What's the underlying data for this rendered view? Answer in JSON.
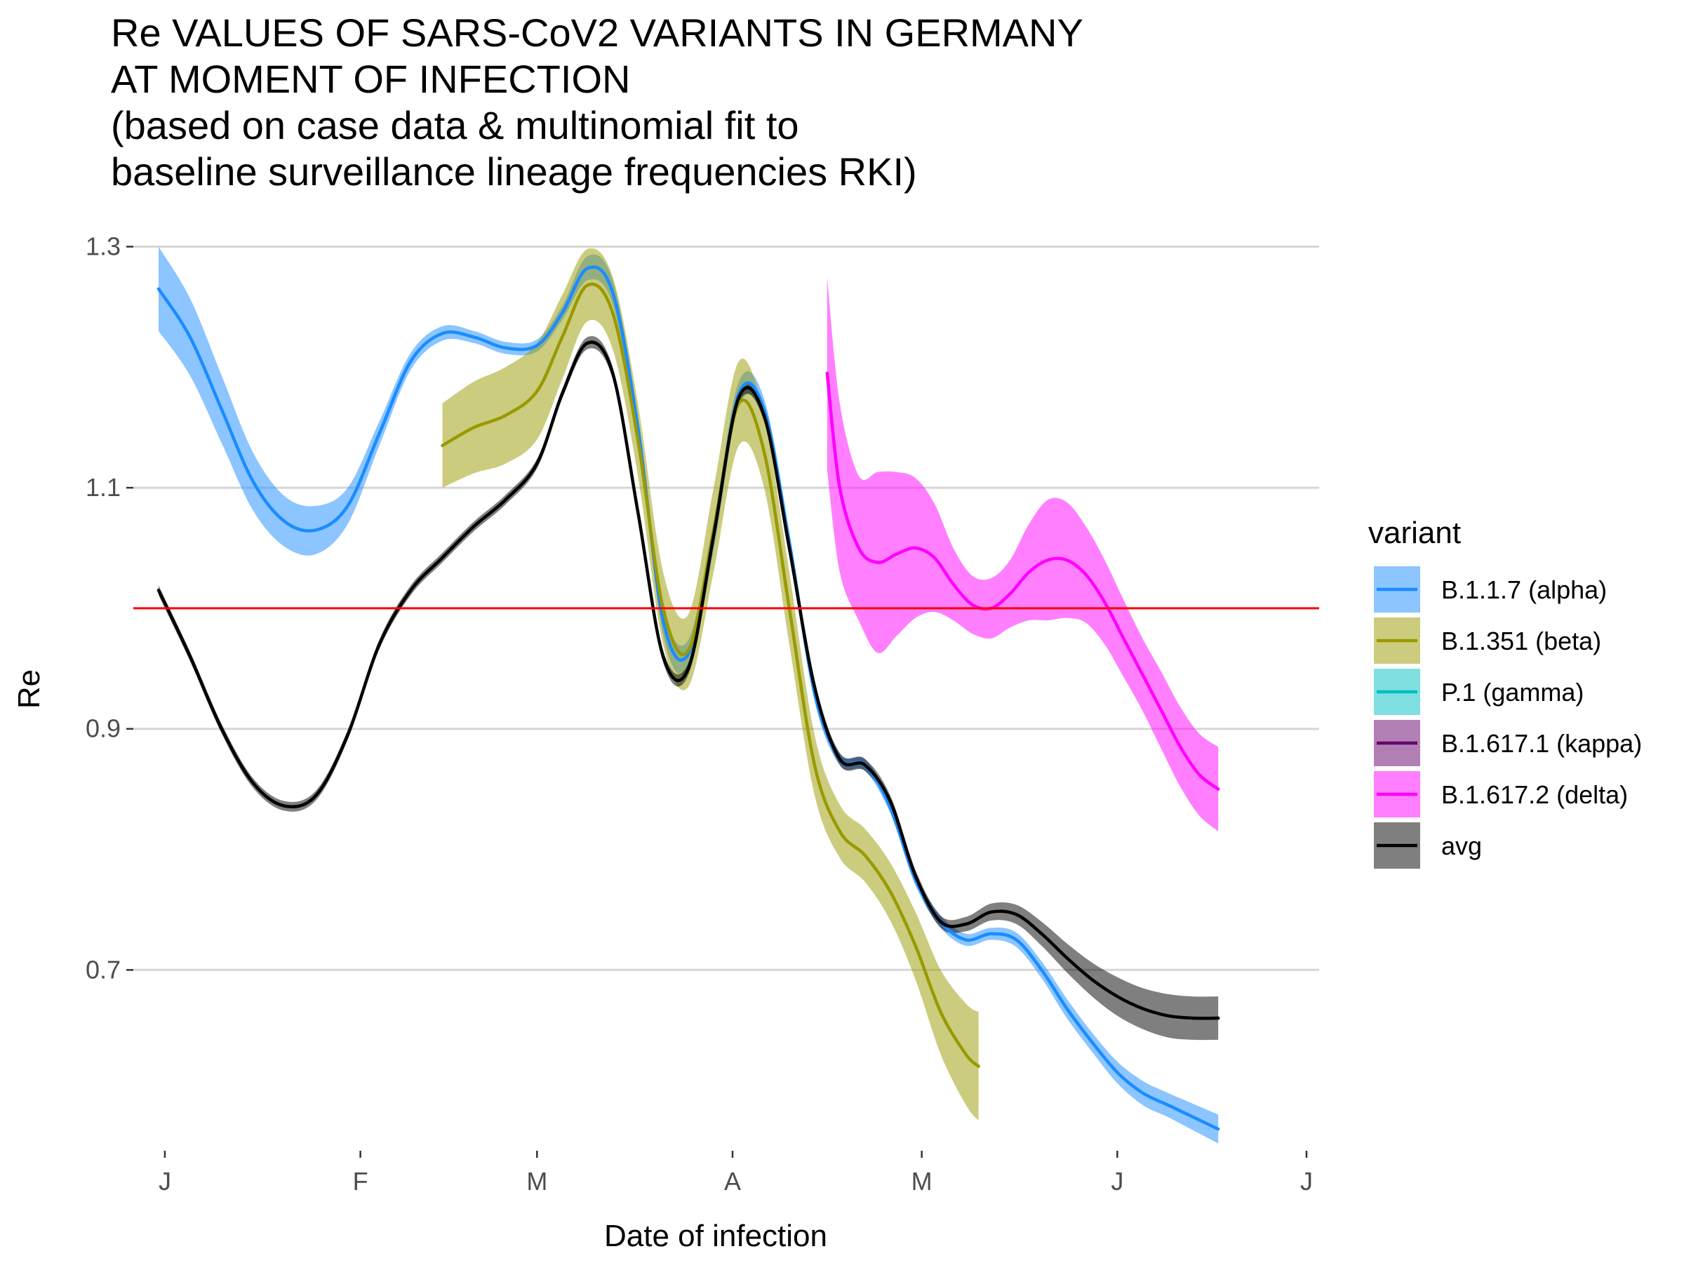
{
  "chart_data": {
    "type": "line",
    "title_lines": [
      "Re VALUES OF SARS-CoV2 VARIANTS IN GERMANY",
      "AT MOMENT OF INFECTION",
      "(based on case data & multinomial fit to",
      "baseline surveillance lineage frequencies RKI)"
    ],
    "xlabel": "Date of infection",
    "ylabel": "Re",
    "x_type": "date",
    "xlim": [
      "2020-12-27",
      "2021-07-03"
    ],
    "ylim": [
      0.55,
      1.33
    ],
    "x_ticks": [
      {
        "date": "2021-01-01",
        "label": "J"
      },
      {
        "date": "2021-02-01",
        "label": "F"
      },
      {
        "date": "2021-03-01",
        "label": "M"
      },
      {
        "date": "2021-04-01",
        "label": "A"
      },
      {
        "date": "2021-05-01",
        "label": "M"
      },
      {
        "date": "2021-06-01",
        "label": "J"
      },
      {
        "date": "2021-07-01",
        "label": "J"
      }
    ],
    "y_ticks": [
      0.7,
      0.9,
      1.1,
      1.3
    ],
    "y_tick_labels": [
      "0.7",
      "0.9",
      "1.1",
      "1.3"
    ],
    "grid": "horizontal major",
    "reference_line": {
      "y": 1.0,
      "color": "#ff0000"
    },
    "legend": {
      "title": "variant",
      "placement": "right"
    },
    "series": [
      {
        "name": "B.1.1.7 (alpha)",
        "color": "#1a8cff",
        "x": [
          "2020-12-31",
          "2021-01-05",
          "2021-01-10",
          "2021-01-15",
          "2021-01-20",
          "2021-01-25",
          "2021-01-30",
          "2021-02-04",
          "2021-02-09",
          "2021-02-14",
          "2021-02-19",
          "2021-02-24",
          "2021-03-01",
          "2021-03-05",
          "2021-03-09",
          "2021-03-13",
          "2021-03-17",
          "2021-03-21",
          "2021-03-25",
          "2021-03-29",
          "2021-04-02",
          "2021-04-06",
          "2021-04-10",
          "2021-04-14",
          "2021-04-18",
          "2021-04-22",
          "2021-04-26",
          "2021-04-30",
          "2021-05-04",
          "2021-05-08",
          "2021-05-12",
          "2021-05-16",
          "2021-05-20",
          "2021-05-24",
          "2021-05-28",
          "2021-06-01",
          "2021-06-05",
          "2021-06-09",
          "2021-06-13",
          "2021-06-17"
        ],
        "y": [
          1.265,
          1.225,
          1.165,
          1.105,
          1.072,
          1.065,
          1.085,
          1.145,
          1.205,
          1.228,
          1.225,
          1.216,
          1.218,
          1.245,
          1.282,
          1.262,
          1.15,
          0.99,
          0.962,
          1.06,
          1.178,
          1.165,
          1.055,
          0.93,
          0.875,
          0.87,
          0.835,
          0.775,
          0.74,
          0.725,
          0.73,
          0.725,
          0.7,
          0.668,
          0.64,
          0.615,
          0.598,
          0.588,
          0.578,
          0.568
        ],
        "ci_half": [
          0.035,
          0.032,
          0.028,
          0.024,
          0.021,
          0.02,
          0.015,
          0.01,
          0.007,
          0.006,
          0.005,
          0.005,
          0.005,
          0.006,
          0.01,
          0.01,
          0.01,
          0.012,
          0.012,
          0.012,
          0.01,
          0.009,
          0.008,
          0.007,
          0.005,
          0.005,
          0.005,
          0.005,
          0.005,
          0.005,
          0.005,
          0.006,
          0.007,
          0.008,
          0.008,
          0.009,
          0.01,
          0.01,
          0.011,
          0.012
        ]
      },
      {
        "name": "B.1.351 (beta)",
        "color": "#999900",
        "x": [
          "2021-02-14",
          "2021-02-19",
          "2021-02-24",
          "2021-03-01",
          "2021-03-05",
          "2021-03-09",
          "2021-03-13",
          "2021-03-17",
          "2021-03-21",
          "2021-03-25",
          "2021-03-29",
          "2021-04-02",
          "2021-04-06",
          "2021-04-10",
          "2021-04-14",
          "2021-04-18",
          "2021-04-22",
          "2021-04-26",
          "2021-04-30",
          "2021-05-04",
          "2021-05-08",
          "2021-05-10"
        ],
        "y": [
          1.135,
          1.15,
          1.16,
          1.18,
          1.225,
          1.268,
          1.245,
          1.14,
          1.0,
          0.965,
          1.065,
          1.17,
          1.13,
          1.0,
          0.87,
          0.815,
          0.795,
          0.765,
          0.72,
          0.665,
          0.63,
          0.62
        ],
        "ci_half": [
          0.035,
          0.038,
          0.04,
          0.04,
          0.035,
          0.03,
          0.03,
          0.03,
          0.03,
          0.03,
          0.035,
          0.035,
          0.03,
          0.03,
          0.025,
          0.022,
          0.022,
          0.024,
          0.028,
          0.035,
          0.042,
          0.045
        ]
      },
      {
        "name": "P.1 (gamma)",
        "color": "#00bfc4",
        "x": [],
        "y": [],
        "ci_half": []
      },
      {
        "name": "B.1.617.1 (kappa)",
        "color": "#66006b",
        "x": [],
        "y": [],
        "ci_half": []
      },
      {
        "name": "B.1.617.2 (delta)",
        "color": "#ff00ff",
        "x": [
          "2021-04-16",
          "2021-04-18",
          "2021-04-21",
          "2021-04-24",
          "2021-04-27",
          "2021-04-30",
          "2021-05-03",
          "2021-05-06",
          "2021-05-09",
          "2021-05-12",
          "2021-05-15",
          "2021-05-18",
          "2021-05-21",
          "2021-05-24",
          "2021-05-27",
          "2021-05-30",
          "2021-06-02",
          "2021-06-05",
          "2021-06-08",
          "2021-06-11",
          "2021-06-14",
          "2021-06-17"
        ],
        "y": [
          1.195,
          1.1,
          1.05,
          1.038,
          1.045,
          1.05,
          1.042,
          1.02,
          1.003,
          1.0,
          1.012,
          1.03,
          1.04,
          1.04,
          1.028,
          1.005,
          0.975,
          0.945,
          0.915,
          0.885,
          0.862,
          0.85
        ],
        "ci_half": [
          0.08,
          0.07,
          0.06,
          0.075,
          0.068,
          0.058,
          0.045,
          0.03,
          0.024,
          0.025,
          0.028,
          0.04,
          0.05,
          0.048,
          0.04,
          0.035,
          0.032,
          0.03,
          0.032,
          0.033,
          0.034,
          0.035
        ]
      },
      {
        "name": "avg",
        "color": "#000000",
        "x": [
          "2020-12-31",
          "2021-01-05",
          "2021-01-10",
          "2021-01-15",
          "2021-01-20",
          "2021-01-25",
          "2021-01-30",
          "2021-02-04",
          "2021-02-09",
          "2021-02-14",
          "2021-02-19",
          "2021-02-24",
          "2021-03-01",
          "2021-03-05",
          "2021-03-09",
          "2021-03-13",
          "2021-03-17",
          "2021-03-21",
          "2021-03-25",
          "2021-03-29",
          "2021-04-02",
          "2021-04-06",
          "2021-04-10",
          "2021-04-14",
          "2021-04-18",
          "2021-04-22",
          "2021-04-26",
          "2021-04-30",
          "2021-05-04",
          "2021-05-08",
          "2021-05-12",
          "2021-05-16",
          "2021-05-20",
          "2021-05-24",
          "2021-05-28",
          "2021-06-01",
          "2021-06-05",
          "2021-06-09",
          "2021-06-13",
          "2021-06-17"
        ],
        "y": [
          1.015,
          0.96,
          0.9,
          0.855,
          0.836,
          0.845,
          0.895,
          0.97,
          1.015,
          1.042,
          1.068,
          1.09,
          1.12,
          1.178,
          1.22,
          1.195,
          1.08,
          0.96,
          0.95,
          1.06,
          1.175,
          1.16,
          1.05,
          0.935,
          0.875,
          0.87,
          0.84,
          0.778,
          0.74,
          0.738,
          0.748,
          0.746,
          0.73,
          0.71,
          0.692,
          0.678,
          0.668,
          0.662,
          0.66,
          0.66
        ],
        "ci_half": [
          0.004,
          0.004,
          0.004,
          0.004,
          0.004,
          0.004,
          0.004,
          0.004,
          0.004,
          0.004,
          0.004,
          0.004,
          0.004,
          0.004,
          0.005,
          0.005,
          0.005,
          0.005,
          0.005,
          0.005,
          0.005,
          0.005,
          0.005,
          0.005,
          0.005,
          0.005,
          0.005,
          0.005,
          0.005,
          0.006,
          0.007,
          0.008,
          0.01,
          0.012,
          0.014,
          0.016,
          0.017,
          0.018,
          0.018,
          0.018
        ]
      }
    ]
  }
}
